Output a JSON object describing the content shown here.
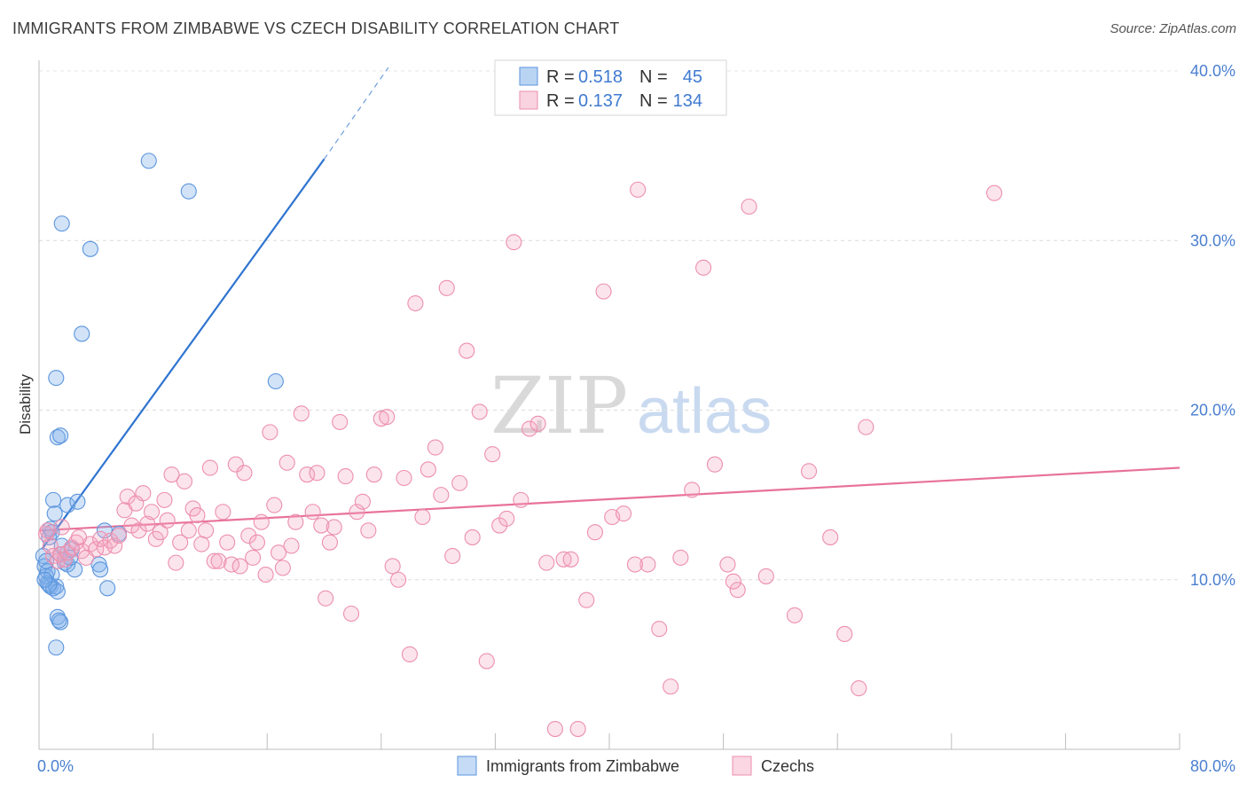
{
  "title": "IMMIGRANTS FROM ZIMBABWE VS CZECH DISABILITY CORRELATION CHART",
  "source": "Source: ZipAtlas.com",
  "watermark": {
    "part1": "ZIP",
    "part2": "atlas"
  },
  "chart_data": {
    "type": "scatter",
    "ylabel": "Disability",
    "xlim": [
      0,
      80
    ],
    "ylim": [
      0,
      40
    ],
    "x_ticks": [
      {
        "value": 0,
        "label": "0.0%"
      },
      {
        "value": 80,
        "label": "80.0%"
      }
    ],
    "y_ticks": [
      {
        "value": 10,
        "label": "10.0%"
      },
      {
        "value": 20,
        "label": "20.0%"
      },
      {
        "value": 30,
        "label": "30.0%"
      },
      {
        "value": 40,
        "label": "40.0%"
      }
    ],
    "grid": true,
    "legend_position": "top-center",
    "stats": [
      {
        "r_label": "R =",
        "r_value": "0.518",
        "n_label": "N =",
        "n_value": "45",
        "color": "#7fb0ea"
      },
      {
        "r_label": "R =",
        "r_value": "0.137",
        "n_label": "N =",
        "n_value": "134",
        "color": "#f4a7bf"
      }
    ],
    "series": [
      {
        "name": "Immigrants from Zimbabwe",
        "color": "#7fb0ea",
        "trend_color": "#2f74d0",
        "trend": {
          "x0": 0.2,
          "y0": 11.8,
          "x1": 20,
          "y1": 34.8,
          "dash_to_x": 24.5,
          "dash_to_y": 40.2
        },
        "points": [
          [
            0.3,
            11.4
          ],
          [
            0.4,
            10.8
          ],
          [
            0.5,
            11.1
          ],
          [
            0.6,
            10.5
          ],
          [
            0.7,
            12.5
          ],
          [
            0.8,
            13.0
          ],
          [
            0.9,
            12.8
          ],
          [
            0.5,
            10.2
          ],
          [
            0.6,
            9.8
          ],
          [
            0.8,
            9.6
          ],
          [
            1.0,
            9.5
          ],
          [
            1.2,
            9.6
          ],
          [
            1.3,
            9.3
          ],
          [
            0.9,
            10.3
          ],
          [
            1.5,
            11.5
          ],
          [
            1.6,
            12.0
          ],
          [
            1.8,
            11.0
          ],
          [
            2.0,
            10.9
          ],
          [
            2.3,
            11.8
          ],
          [
            2.5,
            10.6
          ],
          [
            2.0,
            14.4
          ],
          [
            2.7,
            14.6
          ],
          [
            1.0,
            14.7
          ],
          [
            1.1,
            13.9
          ],
          [
            1.3,
            18.4
          ],
          [
            1.5,
            18.5
          ],
          [
            1.2,
            21.9
          ],
          [
            1.6,
            31.0
          ],
          [
            3.6,
            29.5
          ],
          [
            3.0,
            24.5
          ],
          [
            7.7,
            34.7
          ],
          [
            10.5,
            32.9
          ],
          [
            16.6,
            21.7
          ],
          [
            4.6,
            12.9
          ],
          [
            5.6,
            12.7
          ],
          [
            4.2,
            10.9
          ],
          [
            4.3,
            10.6
          ],
          [
            4.8,
            9.5
          ],
          [
            1.3,
            7.8
          ],
          [
            1.5,
            7.5
          ],
          [
            1.4,
            7.6
          ],
          [
            1.2,
            6.0
          ],
          [
            0.7,
            9.7
          ],
          [
            0.4,
            10.0
          ],
          [
            2.2,
            11.3
          ]
        ]
      },
      {
        "name": "Czechs",
        "color": "#f4a7bf",
        "trend_color": "#e8729a",
        "trend": {
          "x0": 0,
          "y0": 12.9,
          "x1": 80,
          "y1": 16.6
        },
        "points": [
          [
            0.5,
            12.7
          ],
          [
            0.8,
            12.0
          ],
          [
            1.0,
            11.4
          ],
          [
            1.3,
            11.1
          ],
          [
            1.5,
            11.5
          ],
          [
            1.8,
            11.2
          ],
          [
            2.0,
            11.6
          ],
          [
            2.3,
            11.9
          ],
          [
            2.6,
            12.2
          ],
          [
            3.0,
            11.7
          ],
          [
            3.3,
            11.3
          ],
          [
            3.6,
            12.1
          ],
          [
            4.0,
            11.8
          ],
          [
            4.3,
            12.4
          ],
          [
            4.6,
            11.9
          ],
          [
            5.0,
            12.3
          ],
          [
            5.3,
            12.0
          ],
          [
            5.6,
            12.6
          ],
          [
            6.0,
            14.1
          ],
          [
            6.2,
            14.9
          ],
          [
            6.5,
            13.2
          ],
          [
            6.8,
            14.5
          ],
          [
            7.0,
            12.9
          ],
          [
            7.3,
            15.1
          ],
          [
            7.6,
            13.3
          ],
          [
            7.9,
            14.0
          ],
          [
            8.2,
            12.4
          ],
          [
            8.5,
            12.8
          ],
          [
            8.8,
            14.7
          ],
          [
            9.0,
            13.5
          ],
          [
            9.3,
            16.2
          ],
          [
            9.6,
            11.0
          ],
          [
            9.9,
            12.2
          ],
          [
            10.2,
            15.8
          ],
          [
            10.5,
            12.9
          ],
          [
            10.8,
            14.2
          ],
          [
            11.1,
            13.8
          ],
          [
            11.4,
            12.1
          ],
          [
            11.7,
            12.9
          ],
          [
            12.0,
            16.6
          ],
          [
            12.3,
            11.1
          ],
          [
            12.6,
            11.1
          ],
          [
            12.9,
            14.0
          ],
          [
            13.2,
            12.2
          ],
          [
            13.5,
            10.9
          ],
          [
            13.8,
            16.8
          ],
          [
            14.1,
            10.8
          ],
          [
            14.4,
            16.3
          ],
          [
            14.7,
            12.6
          ],
          [
            15.0,
            11.3
          ],
          [
            15.3,
            12.2
          ],
          [
            15.6,
            13.4
          ],
          [
            15.9,
            10.3
          ],
          [
            16.2,
            18.7
          ],
          [
            16.5,
            14.4
          ],
          [
            16.8,
            11.6
          ],
          [
            17.1,
            10.7
          ],
          [
            17.4,
            16.9
          ],
          [
            17.7,
            12.0
          ],
          [
            18.0,
            13.4
          ],
          [
            18.4,
            19.8
          ],
          [
            18.8,
            16.2
          ],
          [
            19.2,
            14.0
          ],
          [
            19.5,
            16.3
          ],
          [
            19.8,
            13.2
          ],
          [
            20.1,
            8.9
          ],
          [
            20.4,
            12.2
          ],
          [
            20.7,
            13.1
          ],
          [
            21.1,
            19.3
          ],
          [
            21.5,
            16.1
          ],
          [
            21.9,
            8.0
          ],
          [
            22.3,
            14.0
          ],
          [
            22.7,
            14.6
          ],
          [
            23.1,
            12.9
          ],
          [
            23.5,
            16.2
          ],
          [
            24.0,
            19.5
          ],
          [
            24.4,
            19.6
          ],
          [
            24.8,
            10.8
          ],
          [
            25.2,
            10.0
          ],
          [
            25.6,
            16.0
          ],
          [
            26.0,
            5.6
          ],
          [
            26.4,
            26.3
          ],
          [
            26.9,
            13.7
          ],
          [
            27.3,
            16.5
          ],
          [
            27.8,
            17.8
          ],
          [
            28.2,
            15.0
          ],
          [
            28.6,
            27.2
          ],
          [
            29.0,
            11.4
          ],
          [
            29.5,
            15.7
          ],
          [
            30.0,
            23.5
          ],
          [
            30.4,
            12.5
          ],
          [
            30.9,
            19.9
          ],
          [
            31.4,
            5.2
          ],
          [
            31.8,
            17.4
          ],
          [
            32.3,
            13.2
          ],
          [
            32.8,
            13.6
          ],
          [
            33.3,
            29.9
          ],
          [
            33.8,
            14.7
          ],
          [
            34.4,
            18.9
          ],
          [
            35.0,
            19.2
          ],
          [
            35.6,
            11.0
          ],
          [
            36.2,
            1.2
          ],
          [
            36.8,
            11.2
          ],
          [
            37.3,
            11.2
          ],
          [
            37.8,
            1.2
          ],
          [
            38.4,
            8.8
          ],
          [
            39.0,
            12.8
          ],
          [
            39.6,
            27.0
          ],
          [
            40.2,
            13.7
          ],
          [
            41.0,
            13.9
          ],
          [
            42.0,
            33.0
          ],
          [
            42.7,
            10.9
          ],
          [
            43.5,
            7.1
          ],
          [
            44.3,
            3.7
          ],
          [
            45.0,
            11.3
          ],
          [
            45.8,
            15.3
          ],
          [
            46.6,
            28.4
          ],
          [
            47.4,
            16.8
          ],
          [
            48.3,
            10.9
          ],
          [
            49.0,
            9.4
          ],
          [
            49.8,
            32.0
          ],
          [
            51.0,
            10.2
          ],
          [
            53.0,
            7.9
          ],
          [
            54.0,
            16.4
          ],
          [
            55.5,
            12.5
          ],
          [
            56.5,
            6.8
          ],
          [
            57.5,
            3.6
          ],
          [
            58.0,
            19.0
          ],
          [
            67.0,
            32.8
          ],
          [
            41.8,
            10.9
          ],
          [
            0.6,
            12.9
          ],
          [
            1.6,
            13.1
          ],
          [
            2.8,
            12.5
          ],
          [
            48.7,
            9.9
          ]
        ]
      }
    ]
  }
}
